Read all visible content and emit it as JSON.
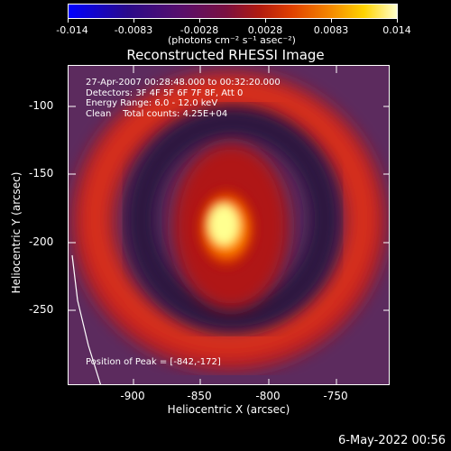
{
  "colorbar": {
    "ticks": [
      "-0.014",
      "-0.0083",
      "-0.0028",
      "0.0028",
      "0.0083",
      "0.014"
    ],
    "unit_label": "(photons cm⁻² s⁻¹ asec⁻²)"
  },
  "title": "Reconstructed RHESSI Image",
  "info_lines": [
    "27-Apr-2007 00:28:48.000 to 00:32:20.000",
    "Detectors: 3F 4F 5F 6F 7F 8F, Att 0",
    "Energy Range: 6.0 - 12.0 keV",
    "Clean    Total counts: 4.25E+04"
  ],
  "peak_text": "Position of Peak = [-842,-172]",
  "x_axis": {
    "label": "Heliocentric X (arcsec)",
    "ticks": [
      "-900",
      "-850",
      "-800",
      "-750"
    ]
  },
  "y_axis": {
    "label": "Heliocentric Y (arcsec)",
    "ticks": [
      "-100",
      "-150",
      "-200",
      "-250"
    ]
  },
  "timestamp": "6-May-2022 00:56"
}
